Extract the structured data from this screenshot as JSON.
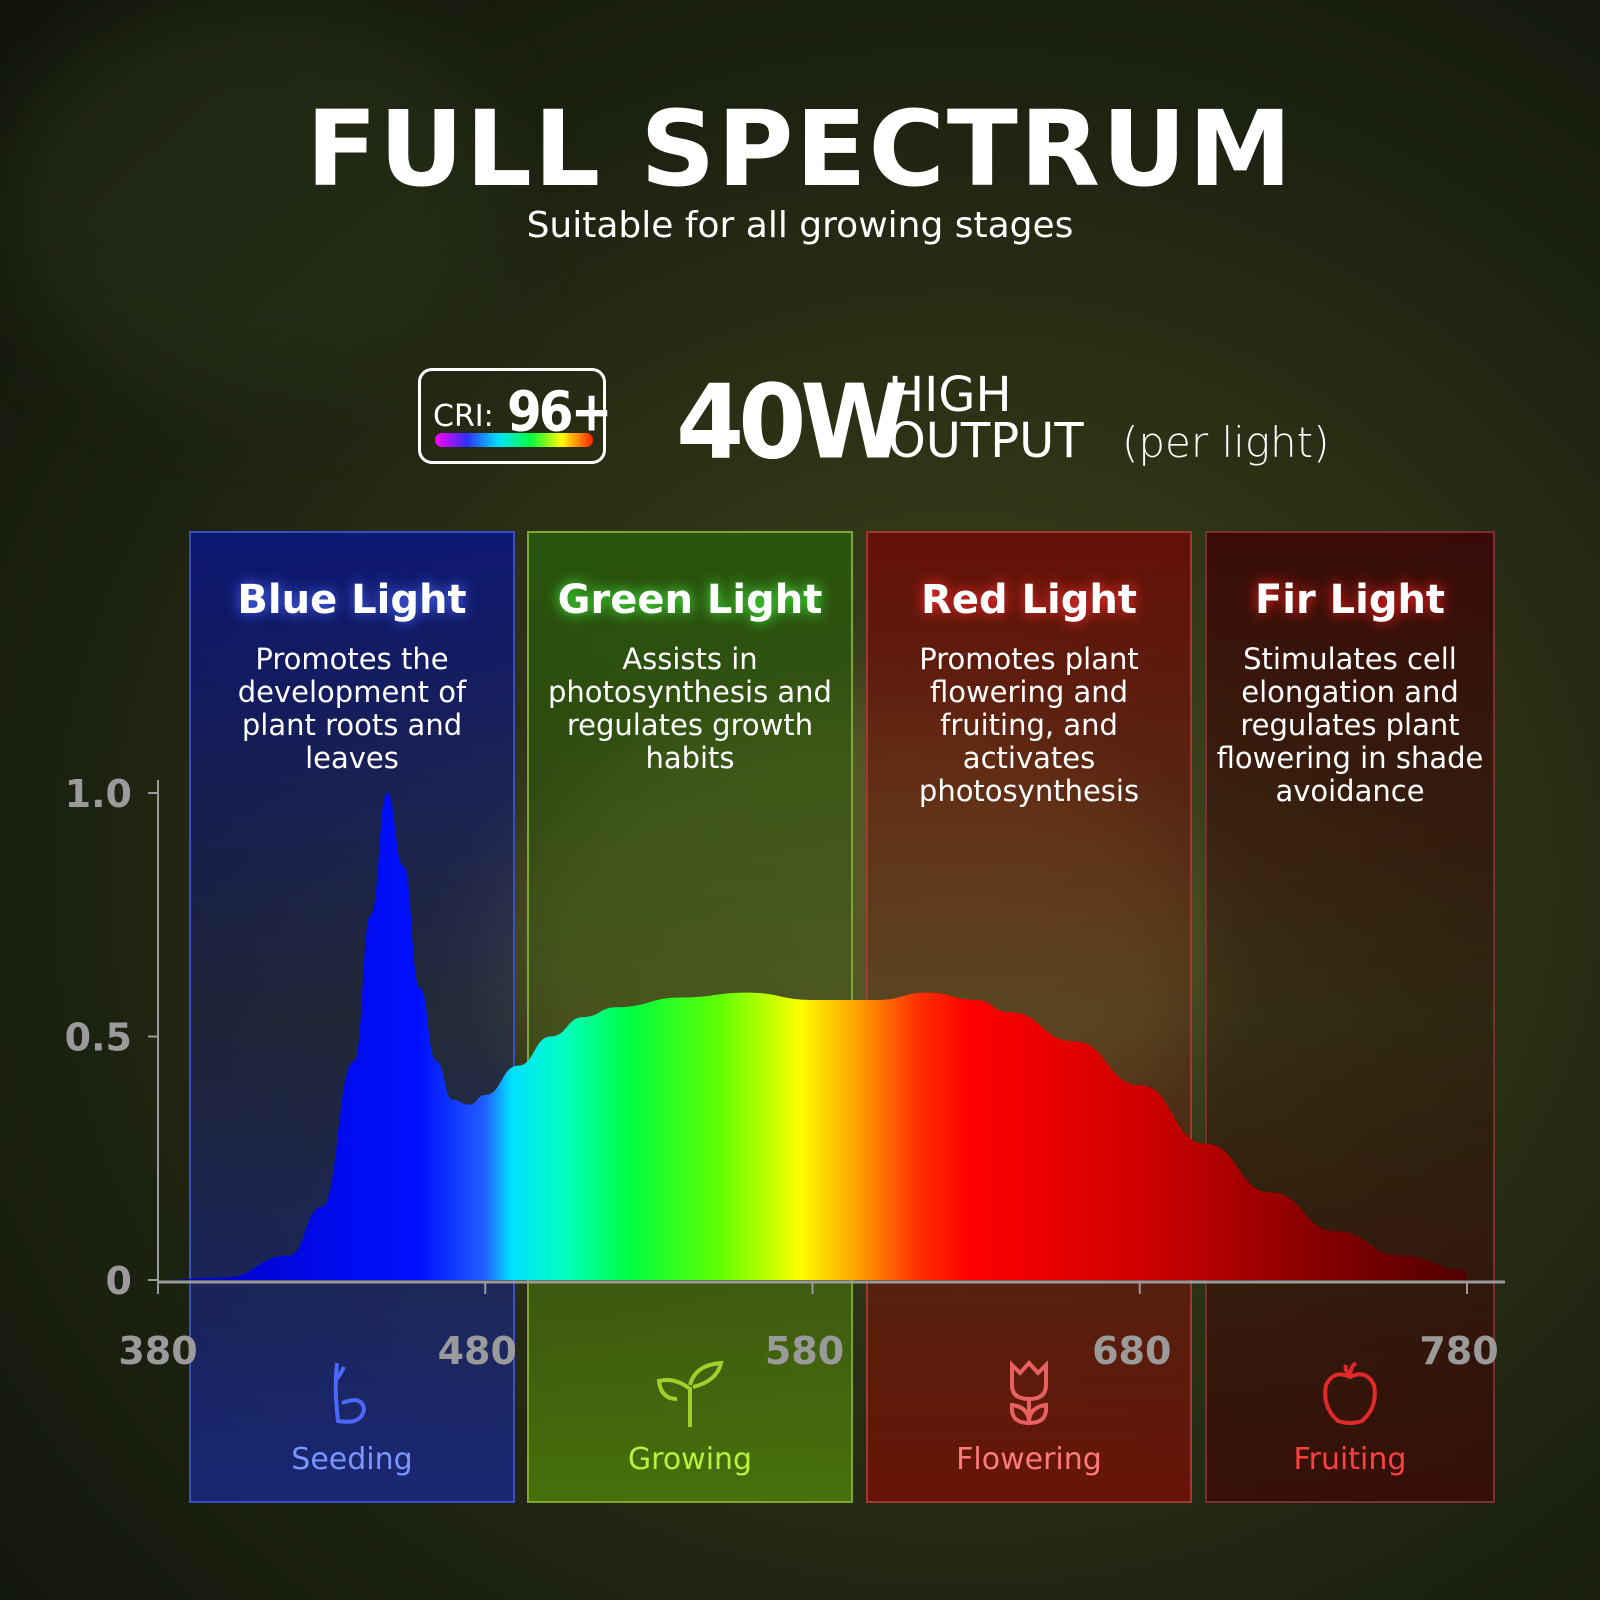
{
  "header": {
    "title": "FULL SPECTRUM",
    "subtitle": "Suitable for all growing stages"
  },
  "specs": {
    "cri_label": "CRI:",
    "cri_value": "96+",
    "wattage": "40W",
    "output_line1": "HIGH",
    "output_line2": "OUTPUT",
    "output_note": "(per light)"
  },
  "panels": [
    {
      "title": "Blue Light",
      "description": "Promotes the development of plant roots and leaves",
      "stage": "Seeding",
      "icon": "seedling-sprout-icon",
      "color": "#3a5aff"
    },
    {
      "title": "Green Light",
      "description": "Assists in photosynthesis and regulates growth habits",
      "stage": "Growing",
      "icon": "two-leaf-sprout-icon",
      "color": "#9fd12a"
    },
    {
      "title": "Red Light",
      "description": "Promotes plant flowering and fruiting, and activates photosynthesis",
      "stage": "Flowering",
      "icon": "tulip-flower-icon",
      "color": "#ff6a6a"
    },
    {
      "title": "Fir Light",
      "description": "Stimulates cell elongation and regulates plant flowering in shade avoidance",
      "stage": "Fruiting",
      "icon": "apple-fruit-icon",
      "color": "#ff3a3a"
    }
  ],
  "chart_data": {
    "type": "area",
    "xlim": [
      380,
      780
    ],
    "ylim": [
      0,
      1.0
    ],
    "x_ticks": [
      "380",
      "480",
      "580",
      "680",
      "780"
    ],
    "y_ticks": [
      "0",
      "0.5",
      "1.0"
    ],
    "grid": false,
    "x": [
      380,
      400,
      420,
      430,
      440,
      445,
      450,
      455,
      460,
      465,
      470,
      475,
      480,
      490,
      500,
      510,
      520,
      540,
      560,
      580,
      600,
      615,
      630,
      640,
      660,
      680,
      700,
      720,
      740,
      760,
      780
    ],
    "values": [
      0,
      0.005,
      0.05,
      0.15,
      0.45,
      0.75,
      1.0,
      0.85,
      0.6,
      0.45,
      0.37,
      0.36,
      0.38,
      0.44,
      0.5,
      0.54,
      0.56,
      0.58,
      0.59,
      0.575,
      0.575,
      0.59,
      0.575,
      0.55,
      0.49,
      0.4,
      0.28,
      0.18,
      0.1,
      0.05,
      0.02
    ]
  }
}
